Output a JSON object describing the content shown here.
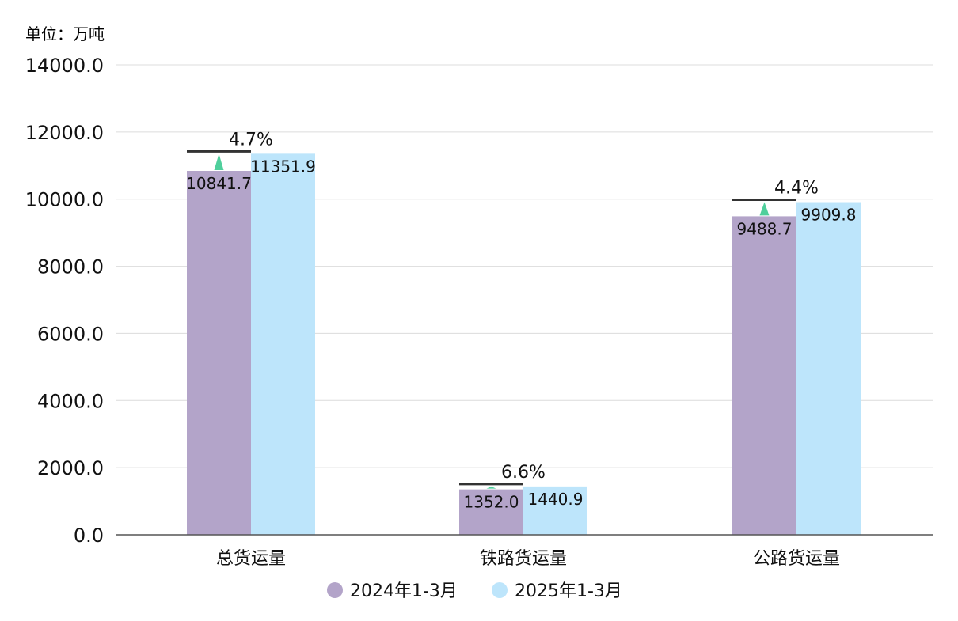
{
  "chart_data": {
    "type": "bar",
    "unit_label": "单位：万吨",
    "categories": [
      "总货运量",
      "铁路货运量",
      "公路货运量"
    ],
    "series": [
      {
        "name": "2024年1-3月",
        "values": [
          10841.7,
          1352.0,
          9488.7
        ],
        "labels": [
          "10841.7",
          "1352.0",
          "9488.7"
        ],
        "color": "#b3a4c9"
      },
      {
        "name": "2025年1-3月",
        "values": [
          11351.9,
          1440.9,
          9909.8
        ],
        "labels": [
          "11351.9",
          "1440.9",
          "9909.8"
        ],
        "color": "#bde5fb"
      }
    ],
    "growth": [
      "4.7%",
      "6.6%",
      "4.4%"
    ],
    "growth_marker_color": "#4fcf9c",
    "ylim": [
      0,
      14000
    ],
    "yticks": [
      "0.0",
      "2000.0",
      "4000.0",
      "6000.0",
      "8000.0",
      "10000.0",
      "12000.0",
      "14000.0"
    ],
    "legend_position": "bottom-center",
    "grid": true
  }
}
